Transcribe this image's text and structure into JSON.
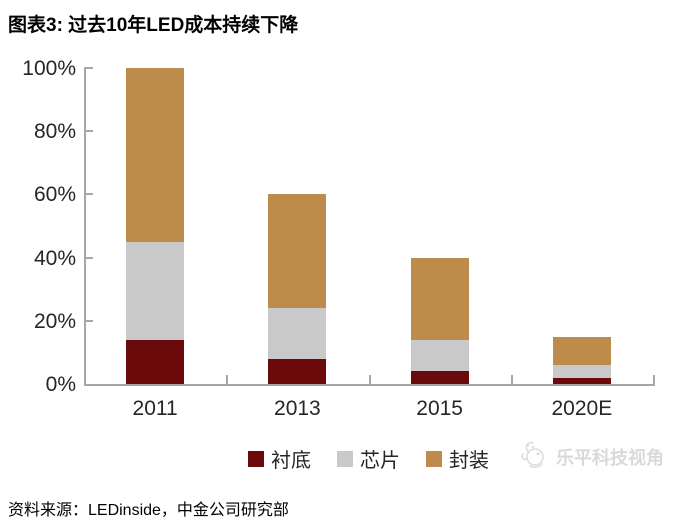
{
  "figure": {
    "title": "图表3: 过去10年LED成本持续下降",
    "source": "资料来源：LEDinside，中金公司研究部",
    "watermark_text": "乐平科技视角"
  },
  "chart_data": {
    "type": "bar",
    "stacked": true,
    "title": "图表3: 过去10年LED成本持续下降",
    "categories": [
      "2011",
      "2013",
      "2015",
      "2020E"
    ],
    "series": [
      {
        "name": "衬底",
        "color": "#6a0a0a",
        "values": [
          14,
          8,
          4,
          2
        ]
      },
      {
        "name": "芯片",
        "color": "#c9c9c9",
        "values": [
          31,
          16,
          10,
          4
        ]
      },
      {
        "name": "封装",
        "color": "#be8c4a",
        "values": [
          55,
          36,
          26,
          9
        ]
      }
    ],
    "totals": [
      100,
      60,
      40,
      15
    ],
    "xlabel": "",
    "ylabel": "",
    "ylim": [
      0,
      100
    ],
    "ytick_step": 20,
    "ytick_labels": [
      "0%",
      "20%",
      "40%",
      "60%",
      "80%",
      "100%"
    ],
    "legend_position": "bottom",
    "grid": false
  },
  "colors": {
    "axis": "#a6a6a6",
    "tick_text": "#262626",
    "watermark": "#d9d9d9"
  }
}
